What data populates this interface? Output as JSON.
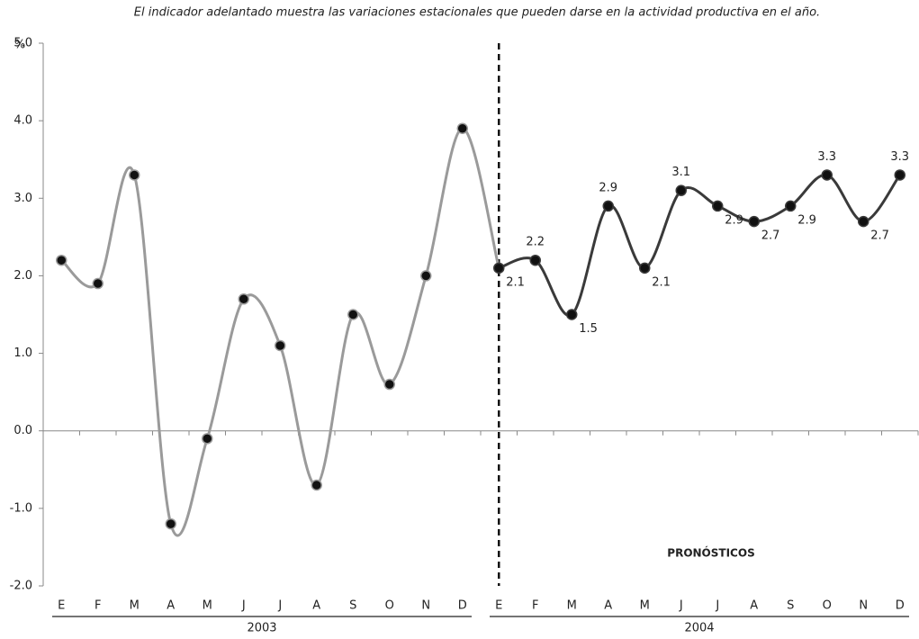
{
  "chart_data": {
    "type": "line",
    "title": "El indicador adelantado muestra las variaciones estacionales que pueden darse en la actividad productiva en el año.",
    "ylabel": "%",
    "annotation": "PRONÓSTICOS",
    "categories": [
      "E",
      "F",
      "M",
      "A",
      "M",
      "J",
      "J",
      "A",
      "S",
      "O",
      "N",
      "D",
      "E",
      "F",
      "M",
      "A",
      "M",
      "J",
      "J",
      "A",
      "S",
      "O",
      "N",
      "D"
    ],
    "groups": [
      "2003",
      "2004"
    ],
    "series": [
      {
        "color": "#9a9a9a",
        "values": [
          2.2,
          1.9,
          3.3,
          -1.2,
          -0.1,
          1.7,
          1.1,
          -0.7,
          1.5,
          0.6,
          2.0,
          3.9,
          null,
          null,
          null,
          null,
          null,
          null,
          null,
          null,
          null,
          null,
          null,
          null
        ]
      },
      {
        "color": "#3a3a3a",
        "values": [
          null,
          null,
          null,
          null,
          null,
          null,
          null,
          null,
          null,
          null,
          null,
          null,
          2.1,
          2.2,
          1.5,
          2.9,
          2.1,
          3.1,
          2.9,
          2.7,
          2.9,
          3.3,
          2.7,
          3.3
        ],
        "show_labels": true
      }
    ],
    "ylim": [
      -2,
      5
    ],
    "yticks": [
      {
        "value": -2,
        "label": "-2.0"
      },
      {
        "value": -1,
        "label": "-1.0"
      },
      {
        "value": 0,
        "label": "0.0"
      },
      {
        "value": 1,
        "label": "1.0"
      },
      {
        "value": 2,
        "label": "2.0"
      },
      {
        "value": 3,
        "label": "3.0"
      },
      {
        "value": 4,
        "label": "4.0"
      },
      {
        "value": 5,
        "label": "5.0"
      }
    ],
    "grid": false
  }
}
